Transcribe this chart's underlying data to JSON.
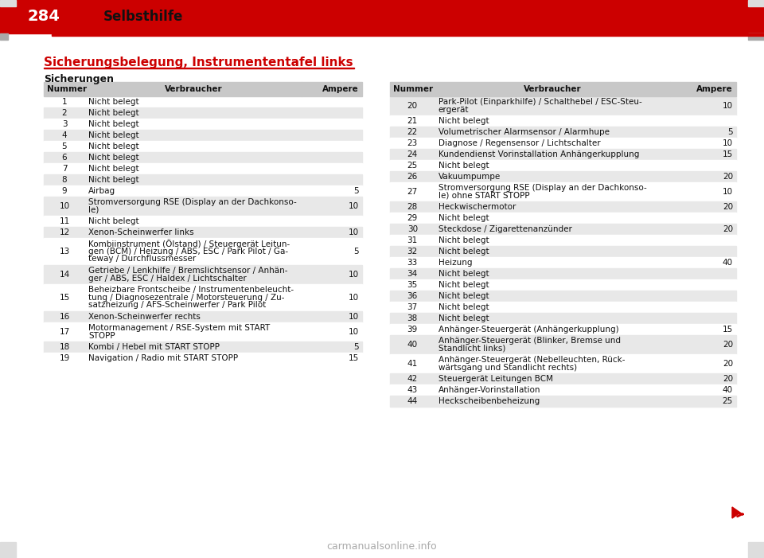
{
  "page_number": "284",
  "header_section": "Selbsthilfe",
  "title": "Sicherungsbelegung, Instrumententafel links",
  "subtitle": "Sicherungen",
  "bg_color": "#ffffff",
  "header_bg": "#cc0000",
  "header_text_color": "#ffffff",
  "title_color": "#cc0000",
  "table_header_bg": "#c8c8c8",
  "row_alt_bg": "#e8e8e8",
  "row_bg": "#f5f5f5",
  "left_table": {
    "headers": [
      "Nummer",
      "Verbraucher",
      "Ampere"
    ],
    "rows": [
      {
        "num": "1",
        "desc": "Nicht belegt",
        "amp": "",
        "shaded": false
      },
      {
        "num": "2",
        "desc": "Nicht belegt",
        "amp": "",
        "shaded": true
      },
      {
        "num": "3",
        "desc": "Nicht belegt",
        "amp": "",
        "shaded": false
      },
      {
        "num": "4",
        "desc": "Nicht belegt",
        "amp": "",
        "shaded": true
      },
      {
        "num": "5",
        "desc": "Nicht belegt",
        "amp": "",
        "shaded": false
      },
      {
        "num": "6",
        "desc": "Nicht belegt",
        "amp": "",
        "shaded": true
      },
      {
        "num": "7",
        "desc": "Nicht belegt",
        "amp": "",
        "shaded": false
      },
      {
        "num": "8",
        "desc": "Nicht belegt",
        "amp": "",
        "shaded": true
      },
      {
        "num": "9",
        "desc": "Airbag",
        "amp": "5",
        "shaded": false
      },
      {
        "num": "10",
        "desc": "Stromversorgung RSE (Display an der Dachkonso-\nle)",
        "amp": "10",
        "shaded": true
      },
      {
        "num": "11",
        "desc": "Nicht belegt",
        "amp": "",
        "shaded": false
      },
      {
        "num": "12",
        "desc": "Xenon-Scheinwerfer links",
        "amp": "10",
        "shaded": true
      },
      {
        "num": "13",
        "desc": "Kombiinstrument (Ölstand) / Steuergerät Leitun-\ngen (BCM) / Heizung / ABS, ESC / Park Pilot / Ga-\nteway / Durchflussmesser",
        "amp": "5",
        "shaded": false
      },
      {
        "num": "14",
        "desc": "Getriebe / Lenkhilfe / Bremslichtsensor / Anhän-\nger / ABS, ESC / Haldex / Lichtschalter",
        "amp": "10",
        "shaded": true
      },
      {
        "num": "15",
        "desc": "Beheizbare Frontscheibe / Instrumentenbeleucht-\ntung / Diagnosezentrale / Motorsteuerung / Zu-\nsatzheizung / AFS-Scheinwerfer / Park Pilot",
        "amp": "10",
        "shaded": false
      },
      {
        "num": "16",
        "desc": "Xenon-Scheinwerfer rechts",
        "amp": "10",
        "shaded": true
      },
      {
        "num": "17",
        "desc": "Motormanagement / RSE-System mit START\nSTOPP",
        "amp": "10",
        "shaded": false
      },
      {
        "num": "18",
        "desc": "Kombi / Hebel mit START STOPP",
        "amp": "5",
        "shaded": true
      },
      {
        "num": "19",
        "desc": "Navigation / Radio mit START STOPP",
        "amp": "15",
        "shaded": false
      }
    ]
  },
  "right_table": {
    "headers": [
      "Nummer",
      "Verbraucher",
      "Ampere"
    ],
    "rows": [
      {
        "num": "20",
        "desc": "Park-Pilot (Einparkhilfe) / Schalthebel / ESC-Steu-\nergerät",
        "amp": "10",
        "shaded": true
      },
      {
        "num": "21",
        "desc": "Nicht belegt",
        "amp": "",
        "shaded": false
      },
      {
        "num": "22",
        "desc": "Volumetrischer Alarmsensor / Alarmhupe",
        "amp": "5",
        "shaded": true
      },
      {
        "num": "23",
        "desc": "Diagnose / Regensensor / Lichtschalter",
        "amp": "10",
        "shaded": false
      },
      {
        "num": "24",
        "desc": "Kundendienst Vorinstallation Anhängerkupplung",
        "amp": "15",
        "shaded": true
      },
      {
        "num": "25",
        "desc": "Nicht belegt",
        "amp": "",
        "shaded": false
      },
      {
        "num": "26",
        "desc": "Vakuumpumpe",
        "amp": "20",
        "shaded": true
      },
      {
        "num": "27",
        "desc": "Stromversorgung RSE (Display an der Dachkonso-\nle) ohne START STOPP",
        "amp": "10",
        "shaded": false
      },
      {
        "num": "28",
        "desc": "Heckwischermotor",
        "amp": "20",
        "shaded": true
      },
      {
        "num": "29",
        "desc": "Nicht belegt",
        "amp": "",
        "shaded": false
      },
      {
        "num": "30",
        "desc": "Steckdose / Zigarettenanzünder",
        "amp": "20",
        "shaded": true
      },
      {
        "num": "31",
        "desc": "Nicht belegt",
        "amp": "",
        "shaded": false
      },
      {
        "num": "32",
        "desc": "Nicht belegt",
        "amp": "",
        "shaded": true
      },
      {
        "num": "33",
        "desc": "Heizung",
        "amp": "40",
        "shaded": false
      },
      {
        "num": "34",
        "desc": "Nicht belegt",
        "amp": "",
        "shaded": true
      },
      {
        "num": "35",
        "desc": "Nicht belegt",
        "amp": "",
        "shaded": false
      },
      {
        "num": "36",
        "desc": "Nicht belegt",
        "amp": "",
        "shaded": true
      },
      {
        "num": "37",
        "desc": "Nicht belegt",
        "amp": "",
        "shaded": false
      },
      {
        "num": "38",
        "desc": "Nicht belegt",
        "amp": "",
        "shaded": true
      },
      {
        "num": "39",
        "desc": "Anhänger-Steuergerät (Anhängerkupplung)",
        "amp": "15",
        "shaded": false
      },
      {
        "num": "40",
        "desc": "Anhänger-Steuergerät (Blinker, Bremse und\nStandlicht links)",
        "amp": "20",
        "shaded": true
      },
      {
        "num": "41",
        "desc": "Anhänger-Steuergerät (Nebelleuchten, Rück-\nwärtsgang und Standlicht rechts)",
        "amp": "20",
        "shaded": false
      },
      {
        "num": "42",
        "desc": "Steuergerät Leitungen BCM",
        "amp": "20",
        "shaded": true
      },
      {
        "num": "43",
        "desc": "Anhänger-Vorinstallation",
        "amp": "40",
        "shaded": false
      },
      {
        "num": "44",
        "desc": "Heckscheibenbeheizung",
        "amp": "25",
        "shaded": true
      }
    ]
  }
}
